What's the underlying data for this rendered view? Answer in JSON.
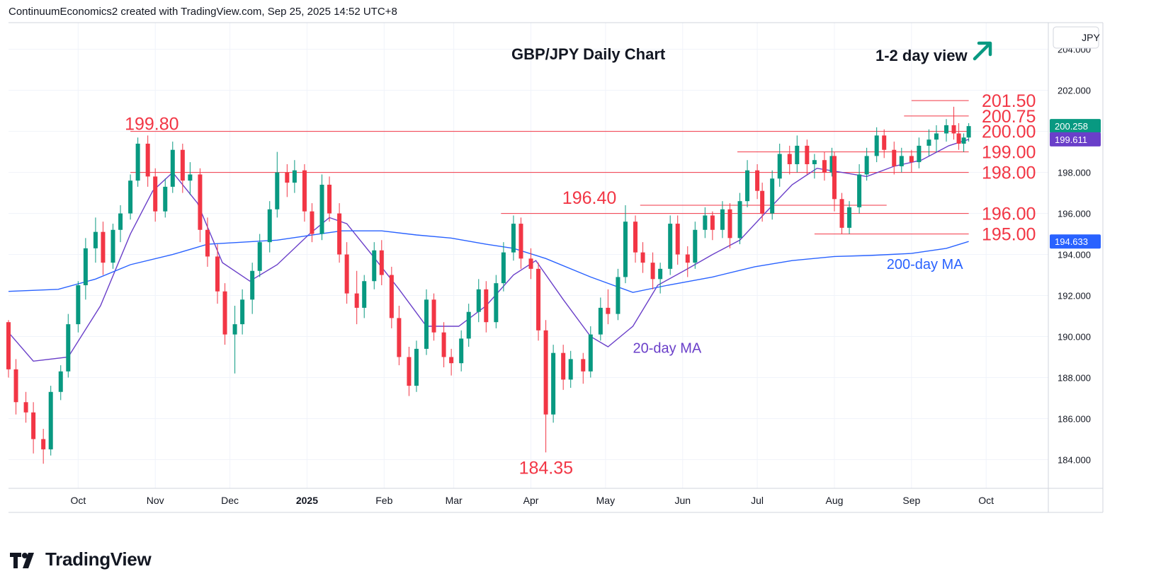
{
  "header": {
    "credit": "ContinuumEconomics2 created with TradingView.com, Sep 25, 2025 14:52 UTC+8"
  },
  "brand": {
    "name": "TradingView",
    "icon": "tradingview-logo-icon"
  },
  "colors": {
    "up": "#089981",
    "down": "#f23645",
    "level": "#f23645",
    "ma20": "#6a3fc9",
    "ma200": "#2962ff",
    "arrow": "#089981",
    "grid": "#f0f3fa"
  },
  "chart_data": {
    "type": "candlestick",
    "title": "GBP/JPY Daily Chart",
    "view_label": "1-2 day view",
    "view_arrow": "up-right-arrow-icon",
    "currency": "JPY",
    "y_ticks": [
      "184.000",
      "186.000",
      "188.000",
      "190.000",
      "192.000",
      "194.000",
      "196.000",
      "198.000",
      "200.000",
      "202.000",
      "204.000"
    ],
    "ylim": [
      182.6,
      205.3
    ],
    "x_ticks": [
      {
        "label": "Oct",
        "date": "2024-10-01"
      },
      {
        "label": "Nov",
        "date": "2024-11-01"
      },
      {
        "label": "Dec",
        "date": "2024-12-01"
      },
      {
        "label": "2025",
        "date": "2025-01-01",
        "bold": true
      },
      {
        "label": "Feb",
        "date": "2025-02-01"
      },
      {
        "label": "Mar",
        "date": "2025-03-01"
      },
      {
        "label": "Apr",
        "date": "2025-04-01"
      },
      {
        "label": "May",
        "date": "2025-05-01"
      },
      {
        "label": "Jun",
        "date": "2025-06-01"
      },
      {
        "label": "Jul",
        "date": "2025-07-01"
      },
      {
        "label": "Aug",
        "date": "2025-08-01"
      },
      {
        "label": "Sep",
        "date": "2025-09-01"
      },
      {
        "label": "Oct",
        "date": "2025-10-01"
      }
    ],
    "x_range": [
      "2024-09-03",
      "2025-10-26"
    ],
    "levels": [
      {
        "label": "201.50",
        "value": 201.5,
        "from": "2025-09-01",
        "to": "2025-09-24"
      },
      {
        "label": "200.75",
        "value": 200.75,
        "from": "2025-08-29",
        "to": "2025-09-24"
      },
      {
        "label": "200.00",
        "value": 200.0,
        "from": "2024-10-22",
        "to": "2025-09-24"
      },
      {
        "label": "199.00",
        "value": 199.0,
        "from": "2025-06-23",
        "to": "2025-09-24"
      },
      {
        "label": "198.00",
        "value": 198.0,
        "from": "2024-10-22",
        "to": "2025-09-24"
      },
      {
        "label": "196.00",
        "value": 196.0,
        "from": "2025-03-20",
        "to": "2025-09-24"
      },
      {
        "label": "195.00",
        "value": 195.0,
        "from": "2025-07-24",
        "to": "2025-09-24"
      }
    ],
    "callouts": [
      {
        "label": "199.80",
        "value": 199.8,
        "date": "2024-10-22"
      },
      {
        "label": "196.40",
        "value": 196.4,
        "date": "2025-04-25",
        "line_to": "2025-08-22"
      },
      {
        "label": "184.35",
        "value": 184.35,
        "date": "2025-04-07"
      }
    ],
    "price_tags": [
      {
        "label": "200.258",
        "value": 200.258,
        "kind": "last"
      },
      {
        "label": "199.611",
        "value": 199.611,
        "kind": "ma20"
      },
      {
        "label": "194.633",
        "value": 194.633,
        "kind": "ma200"
      }
    ],
    "series": [
      {
        "name": "20-day MA",
        "kind": "ma20",
        "points": [
          [
            "2024-09-03",
            190.2
          ],
          [
            "2024-09-13",
            188.8
          ],
          [
            "2024-09-27",
            189.0
          ],
          [
            "2024-10-10",
            191.5
          ],
          [
            "2024-10-22",
            195.0
          ],
          [
            "2024-10-31",
            197.1
          ],
          [
            "2024-11-08",
            198.0
          ],
          [
            "2024-11-18",
            196.5
          ],
          [
            "2024-11-28",
            193.6
          ],
          [
            "2024-12-09",
            192.7
          ],
          [
            "2024-12-20",
            193.5
          ],
          [
            "2025-01-02",
            195.0
          ],
          [
            "2025-01-10",
            195.8
          ],
          [
            "2025-01-17",
            195.5
          ],
          [
            "2025-01-27",
            194.0
          ],
          [
            "2025-02-07",
            192.3
          ],
          [
            "2025-02-18",
            190.5
          ],
          [
            "2025-03-03",
            190.5
          ],
          [
            "2025-03-14",
            191.5
          ],
          [
            "2025-03-25",
            193.0
          ],
          [
            "2025-04-03",
            193.7
          ],
          [
            "2025-04-14",
            191.8
          ],
          [
            "2025-04-25",
            190.0
          ],
          [
            "2025-05-02",
            189.5
          ],
          [
            "2025-05-12",
            190.5
          ],
          [
            "2025-05-22",
            192.5
          ],
          [
            "2025-06-03",
            193.3
          ],
          [
            "2025-06-13",
            194.0
          ],
          [
            "2025-06-24",
            194.7
          ],
          [
            "2025-07-04",
            196.0
          ],
          [
            "2025-07-15",
            197.4
          ],
          [
            "2025-07-25",
            198.2
          ],
          [
            "2025-08-04",
            198.0
          ],
          [
            "2025-08-14",
            197.8
          ],
          [
            "2025-08-25",
            198.3
          ],
          [
            "2025-09-05",
            198.6
          ],
          [
            "2025-09-16",
            199.3
          ],
          [
            "2025-09-24",
            199.611
          ]
        ]
      },
      {
        "name": "200-day MA",
        "kind": "ma200",
        "points": [
          [
            "2024-09-03",
            192.2
          ],
          [
            "2024-09-23",
            192.3
          ],
          [
            "2024-10-08",
            192.8
          ],
          [
            "2024-10-22",
            193.5
          ],
          [
            "2024-11-08",
            194.0
          ],
          [
            "2024-11-22",
            194.5
          ],
          [
            "2024-12-06",
            194.6
          ],
          [
            "2024-12-20",
            194.7
          ],
          [
            "2025-01-06",
            195.0
          ],
          [
            "2025-01-15",
            195.15
          ],
          [
            "2025-01-31",
            195.15
          ],
          [
            "2025-02-14",
            194.95
          ],
          [
            "2025-02-28",
            194.8
          ],
          [
            "2025-03-14",
            194.5
          ],
          [
            "2025-03-25",
            194.3
          ],
          [
            "2025-04-07",
            193.8
          ],
          [
            "2025-04-25",
            192.9
          ],
          [
            "2025-05-12",
            192.15
          ],
          [
            "2025-05-26",
            192.5
          ],
          [
            "2025-06-13",
            192.9
          ],
          [
            "2025-06-30",
            193.4
          ],
          [
            "2025-07-15",
            193.7
          ],
          [
            "2025-08-01",
            193.9
          ],
          [
            "2025-08-15",
            193.95
          ],
          [
            "2025-09-01",
            194.05
          ],
          [
            "2025-09-15",
            194.3
          ],
          [
            "2025-09-24",
            194.633
          ]
        ]
      }
    ],
    "ohlc": [
      [
        "2024-09-03",
        190.7,
        190.8,
        188.0,
        188.4
      ],
      [
        "2024-09-06",
        188.4,
        188.9,
        186.2,
        186.8
      ],
      [
        "2024-09-10",
        186.8,
        187.3,
        185.8,
        186.3
      ],
      [
        "2024-09-13",
        186.3,
        186.8,
        184.3,
        185.0
      ],
      [
        "2024-09-17",
        185.0,
        185.5,
        183.8,
        184.5
      ],
      [
        "2024-09-20",
        184.5,
        187.6,
        184.2,
        187.3
      ],
      [
        "2024-09-24",
        187.3,
        188.6,
        186.9,
        188.3
      ],
      [
        "2024-09-27",
        188.3,
        191.1,
        188.0,
        190.6
      ],
      [
        "2024-10-01",
        190.6,
        192.7,
        190.2,
        192.5
      ],
      [
        "2024-10-04",
        192.5,
        194.8,
        191.8,
        194.3
      ],
      [
        "2024-10-08",
        194.3,
        195.8,
        193.6,
        195.1
      ],
      [
        "2024-10-11",
        195.1,
        195.6,
        193.0,
        193.6
      ],
      [
        "2024-10-15",
        193.6,
        195.5,
        193.3,
        195.2
      ],
      [
        "2024-10-18",
        195.2,
        196.4,
        194.6,
        196.0
      ],
      [
        "2024-10-22",
        196.0,
        197.9,
        195.7,
        197.6
      ],
      [
        "2024-10-25",
        197.6,
        199.7,
        197.3,
        199.4
      ],
      [
        "2024-10-29",
        199.4,
        199.8,
        197.3,
        197.8
      ],
      [
        "2024-11-01",
        197.8,
        198.2,
        195.6,
        196.1
      ],
      [
        "2024-11-05",
        196.1,
        197.7,
        195.8,
        197.3
      ],
      [
        "2024-11-08",
        197.3,
        199.5,
        197.0,
        199.1
      ],
      [
        "2024-11-12",
        199.1,
        199.4,
        197.0,
        197.6
      ],
      [
        "2024-11-15",
        197.6,
        198.5,
        196.9,
        197.9
      ],
      [
        "2024-11-19",
        197.9,
        198.2,
        194.6,
        195.2
      ],
      [
        "2024-11-22",
        195.2,
        195.8,
        193.4,
        193.9
      ],
      [
        "2024-11-26",
        193.9,
        194.5,
        191.6,
        192.2
      ],
      [
        "2024-11-29",
        192.2,
        192.6,
        189.6,
        190.1
      ],
      [
        "2024-12-03",
        190.1,
        191.5,
        188.2,
        190.6
      ],
      [
        "2024-12-06",
        190.6,
        192.3,
        190.1,
        191.8
      ],
      [
        "2024-12-10",
        191.8,
        193.6,
        191.1,
        193.2
      ],
      [
        "2024-12-13",
        193.2,
        195.0,
        192.9,
        194.6
      ],
      [
        "2024-12-17",
        194.6,
        196.6,
        194.1,
        196.2
      ],
      [
        "2024-12-20",
        196.2,
        199.0,
        195.8,
        198.0
      ],
      [
        "2024-12-24",
        198.0,
        198.4,
        196.8,
        197.5
      ],
      [
        "2024-12-27",
        197.5,
        198.6,
        197.0,
        198.1
      ],
      [
        "2024-12-31",
        198.1,
        198.4,
        195.6,
        196.1
      ],
      [
        "2025-01-03",
        196.1,
        196.5,
        194.6,
        195.0
      ],
      [
        "2025-01-07",
        195.0,
        197.9,
        194.7,
        197.4
      ],
      [
        "2025-01-10",
        197.4,
        197.8,
        195.6,
        196.0
      ],
      [
        "2025-01-14",
        196.0,
        196.5,
        193.6,
        194.0
      ],
      [
        "2025-01-17",
        194.0,
        194.6,
        191.6,
        192.1
      ],
      [
        "2025-01-21",
        192.1,
        193.2,
        190.6,
        191.4
      ],
      [
        "2025-01-24",
        191.4,
        193.0,
        190.9,
        192.7
      ],
      [
        "2025-01-28",
        192.7,
        194.6,
        192.3,
        194.2
      ],
      [
        "2025-01-31",
        194.2,
        194.7,
        192.5,
        193.0
      ],
      [
        "2025-02-04",
        193.0,
        193.4,
        190.4,
        190.9
      ],
      [
        "2025-02-07",
        190.9,
        191.5,
        188.6,
        189.0
      ],
      [
        "2025-02-11",
        189.0,
        189.5,
        187.1,
        187.6
      ],
      [
        "2025-02-14",
        187.6,
        189.8,
        187.3,
        189.4
      ],
      [
        "2025-02-18",
        189.4,
        192.3,
        189.1,
        191.8
      ],
      [
        "2025-02-21",
        191.8,
        192.1,
        189.8,
        190.2
      ],
      [
        "2025-02-25",
        190.2,
        190.7,
        188.5,
        189.0
      ],
      [
        "2025-02-28",
        189.0,
        189.4,
        188.1,
        188.7
      ],
      [
        "2025-03-04",
        188.7,
        190.3,
        188.3,
        189.9
      ],
      [
        "2025-03-07",
        189.9,
        191.6,
        189.5,
        191.2
      ],
      [
        "2025-03-11",
        191.2,
        192.8,
        190.7,
        192.3
      ],
      [
        "2025-03-14",
        192.3,
        192.7,
        190.2,
        190.7
      ],
      [
        "2025-03-18",
        190.7,
        193.0,
        190.4,
        192.6
      ],
      [
        "2025-03-21",
        192.6,
        194.6,
        192.2,
        194.1
      ],
      [
        "2025-03-25",
        194.1,
        195.9,
        193.7,
        195.5
      ],
      [
        "2025-03-28",
        195.5,
        195.8,
        193.3,
        193.8
      ],
      [
        "2025-04-01",
        193.8,
        194.3,
        192.8,
        193.3
      ],
      [
        "2025-04-04",
        193.3,
        193.6,
        189.8,
        190.3
      ],
      [
        "2025-04-07",
        190.3,
        190.8,
        184.35,
        186.2
      ],
      [
        "2025-04-10",
        186.2,
        189.6,
        185.8,
        189.2
      ],
      [
        "2025-04-14",
        189.2,
        189.6,
        187.4,
        187.9
      ],
      [
        "2025-04-17",
        187.9,
        189.3,
        187.5,
        188.9
      ],
      [
        "2025-04-22",
        188.9,
        189.2,
        187.7,
        188.3
      ],
      [
        "2025-04-25",
        188.3,
        190.5,
        188.0,
        190.1
      ],
      [
        "2025-04-29",
        190.1,
        191.9,
        189.8,
        191.4
      ],
      [
        "2025-05-02",
        191.4,
        192.3,
        190.6,
        191.1
      ],
      [
        "2025-05-06",
        191.1,
        193.3,
        190.8,
        192.9
      ],
      [
        "2025-05-09",
        192.9,
        196.4,
        192.6,
        195.6
      ],
      [
        "2025-05-13",
        195.6,
        195.9,
        193.6,
        194.1
      ],
      [
        "2025-05-16",
        194.1,
        194.6,
        193.1,
        193.6
      ],
      [
        "2025-05-20",
        193.6,
        194.1,
        192.3,
        192.8
      ],
      [
        "2025-05-23",
        192.8,
        193.6,
        192.1,
        193.3
      ],
      [
        "2025-05-27",
        193.3,
        195.9,
        193.0,
        195.5
      ],
      [
        "2025-05-30",
        195.5,
        195.9,
        193.5,
        194.0
      ],
      [
        "2025-06-03",
        194.0,
        194.4,
        192.9,
        193.6
      ],
      [
        "2025-06-06",
        193.6,
        195.6,
        193.3,
        195.2
      ],
      [
        "2025-06-10",
        195.2,
        196.3,
        194.8,
        195.9
      ],
      [
        "2025-06-13",
        195.9,
        196.1,
        194.7,
        195.2
      ],
      [
        "2025-06-17",
        195.2,
        196.6,
        194.8,
        196.2
      ],
      [
        "2025-06-20",
        196.2,
        196.5,
        194.3,
        194.8
      ],
      [
        "2025-06-24",
        194.8,
        197.0,
        194.5,
        196.6
      ],
      [
        "2025-06-27",
        196.6,
        198.6,
        196.3,
        198.1
      ],
      [
        "2025-07-01",
        198.1,
        198.4,
        196.7,
        197.1
      ],
      [
        "2025-07-03",
        197.1,
        197.5,
        195.6,
        196.0
      ],
      [
        "2025-07-07",
        196.0,
        198.1,
        195.7,
        197.7
      ],
      [
        "2025-07-10",
        197.7,
        199.4,
        197.3,
        198.9
      ],
      [
        "2025-07-14",
        198.9,
        199.3,
        197.9,
        198.4
      ],
      [
        "2025-07-17",
        198.4,
        199.8,
        198.0,
        199.3
      ],
      [
        "2025-07-21",
        199.3,
        199.6,
        197.9,
        198.4
      ],
      [
        "2025-07-24",
        198.4,
        198.9,
        197.7,
        198.6
      ],
      [
        "2025-07-28",
        198.6,
        199.0,
        197.6,
        198.0
      ],
      [
        "2025-07-31",
        198.0,
        199.2,
        197.8,
        198.8
      ],
      [
        "2025-08-01",
        198.8,
        199.0,
        196.1,
        196.7
      ],
      [
        "2025-08-04",
        196.7,
        197.0,
        195.0,
        195.3
      ],
      [
        "2025-08-07",
        195.3,
        196.6,
        195.0,
        196.3
      ],
      [
        "2025-08-11",
        196.3,
        198.4,
        196.0,
        197.9
      ],
      [
        "2025-08-14",
        197.9,
        199.2,
        197.6,
        198.8
      ],
      [
        "2025-08-18",
        198.8,
        200.2,
        198.5,
        199.8
      ],
      [
        "2025-08-21",
        199.8,
        200.1,
        198.7,
        199.1
      ],
      [
        "2025-08-25",
        199.1,
        199.5,
        197.9,
        198.3
      ],
      [
        "2025-08-28",
        198.3,
        199.2,
        198.0,
        198.8
      ],
      [
        "2025-09-01",
        198.8,
        199.1,
        198.0,
        198.5
      ],
      [
        "2025-09-04",
        198.5,
        199.7,
        198.2,
        199.3
      ],
      [
        "2025-09-08",
        199.3,
        200.1,
        198.8,
        199.6
      ],
      [
        "2025-09-11",
        199.6,
        200.3,
        199.0,
        199.9
      ],
      [
        "2025-09-15",
        199.9,
        200.6,
        199.5,
        200.3
      ],
      [
        "2025-09-18",
        200.3,
        201.2,
        199.6,
        199.9
      ],
      [
        "2025-09-20",
        199.9,
        200.4,
        199.1,
        199.4
      ],
      [
        "2025-09-22",
        199.4,
        199.9,
        199.0,
        199.7
      ],
      [
        "2025-09-24",
        199.7,
        200.4,
        199.5,
        200.258
      ]
    ]
  },
  "annotations": {
    "ma20_label": "20-day MA",
    "ma200_label": "200-day MA"
  }
}
